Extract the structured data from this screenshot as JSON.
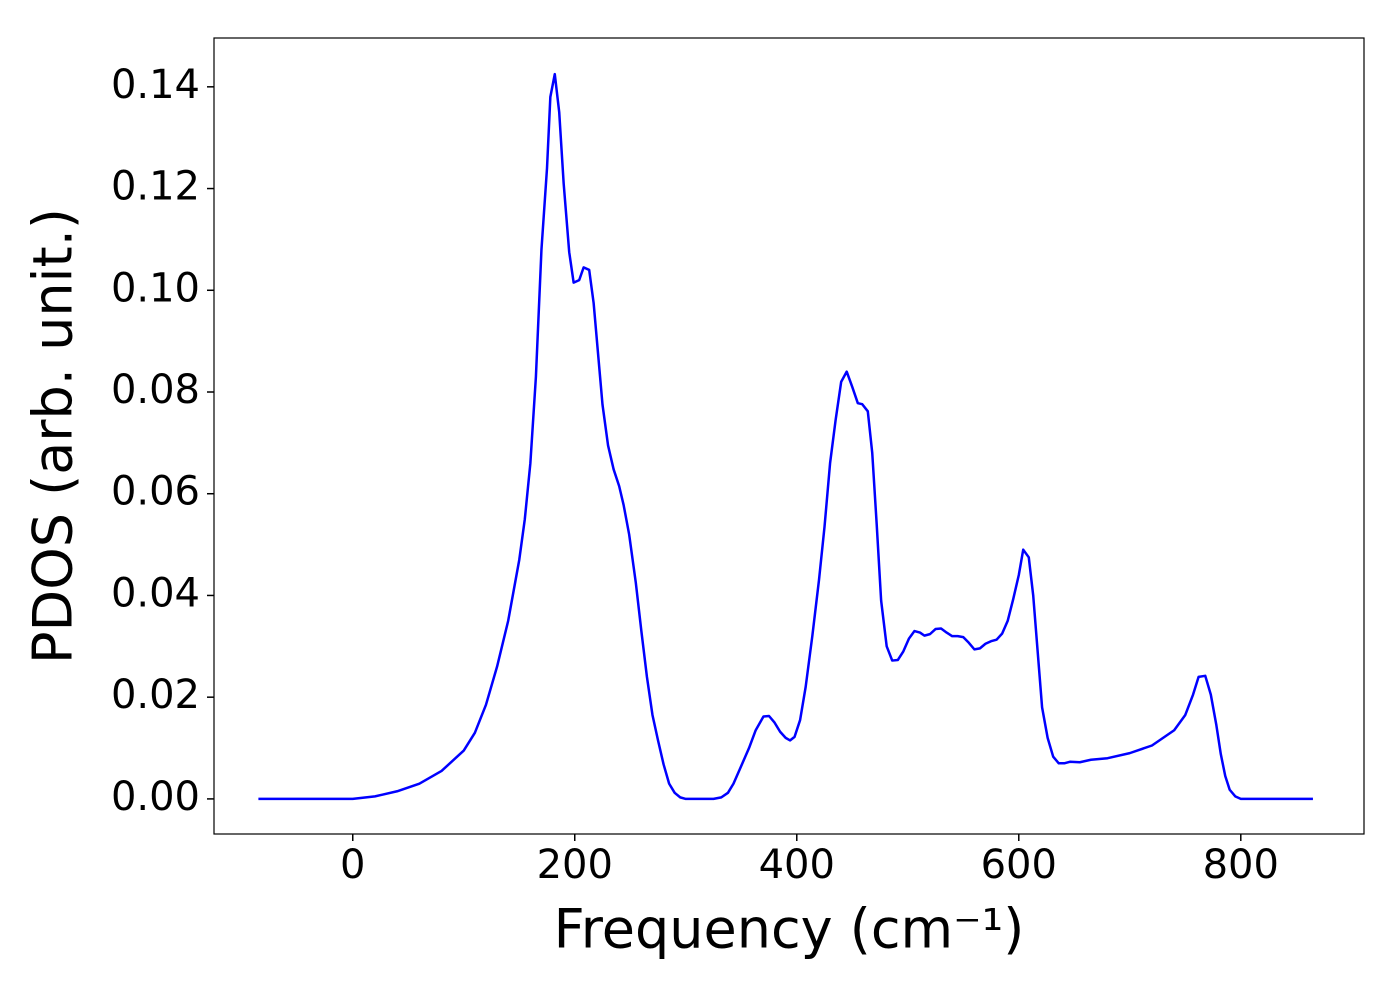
{
  "chart_data": {
    "type": "line",
    "xlabel": "Frequency (cm⁻¹)",
    "ylabel": "PDOS (arb. unit.)",
    "color": "#0000ff",
    "x": [
      -85,
      0,
      20,
      40,
      60,
      80,
      100,
      110,
      120,
      130,
      140,
      145,
      150,
      155,
      160,
      165,
      170,
      175,
      178,
      182,
      186,
      190,
      195,
      199,
      204,
      208,
      213,
      217,
      225,
      230,
      235,
      240,
      244,
      249,
      255,
      260,
      265,
      270,
      275,
      280,
      285,
      290,
      295,
      300,
      325,
      332,
      338,
      343,
      350,
      357,
      363,
      370,
      375,
      380,
      385,
      390,
      394,
      398,
      403,
      408,
      414,
      420,
      425,
      430,
      435,
      440,
      445,
      450,
      455,
      459,
      464,
      468,
      472,
      476,
      481,
      486,
      491,
      496,
      501,
      506,
      511,
      515,
      520,
      525,
      530,
      535,
      540,
      545,
      550,
      555,
      560,
      565,
      570,
      575,
      580,
      585,
      590,
      595,
      600,
      604,
      609,
      613,
      617,
      621,
      626,
      631,
      636,
      641,
      646,
      655,
      665,
      680,
      700,
      720,
      740,
      750,
      757,
      762,
      768,
      773,
      778,
      782,
      786,
      790,
      795,
      800,
      865
    ],
    "values": [
      0,
      0,
      0.0005,
      0.0015,
      0.003,
      0.0055,
      0.0095,
      0.013,
      0.0185,
      0.026,
      0.035,
      0.041,
      0.047,
      0.055,
      0.066,
      0.083,
      0.108,
      0.124,
      0.138,
      0.1425,
      0.135,
      0.121,
      0.1075,
      0.1015,
      0.102,
      0.1045,
      0.104,
      0.0975,
      0.0775,
      0.0695,
      0.0648,
      0.0615,
      0.0578,
      0.052,
      0.0425,
      0.033,
      0.024,
      0.0165,
      0.0115,
      0.0068,
      0.003,
      0.0012,
      0.0003,
      0,
      0,
      0.0003,
      0.0012,
      0.003,
      0.0065,
      0.01,
      0.0135,
      0.0162,
      0.0163,
      0.015,
      0.0132,
      0.012,
      0.0115,
      0.0122,
      0.0155,
      0.022,
      0.032,
      0.043,
      0.0535,
      0.066,
      0.0745,
      0.082,
      0.084,
      0.081,
      0.0778,
      0.0776,
      0.0762,
      0.068,
      0.054,
      0.039,
      0.03,
      0.0272,
      0.0273,
      0.029,
      0.0315,
      0.033,
      0.0327,
      0.0321,
      0.0324,
      0.0334,
      0.0335,
      0.0327,
      0.032,
      0.032,
      0.0318,
      0.0307,
      0.0294,
      0.0296,
      0.0305,
      0.031,
      0.0313,
      0.0325,
      0.035,
      0.0393,
      0.044,
      0.049,
      0.0475,
      0.04,
      0.029,
      0.018,
      0.012,
      0.0083,
      0.007,
      0.007,
      0.0073,
      0.0072,
      0.0077,
      0.008,
      0.009,
      0.0105,
      0.0135,
      0.0165,
      0.0205,
      0.024,
      0.0242,
      0.0205,
      0.0145,
      0.0088,
      0.0045,
      0.0018,
      0.0005,
      0,
      0
    ],
    "xlim": [
      -125,
      911
    ],
    "ylim": [
      -0.0069,
      0.1496
    ],
    "xticks": [
      0,
      200,
      400,
      600,
      800
    ],
    "yticks": [
      {
        "value": 0,
        "label": "0.00"
      },
      0.02,
      0.04,
      0.06,
      0.08,
      {
        "value": 0.1,
        "label": "0.10"
      },
      0.12,
      0.14
    ],
    "grid": false
  }
}
